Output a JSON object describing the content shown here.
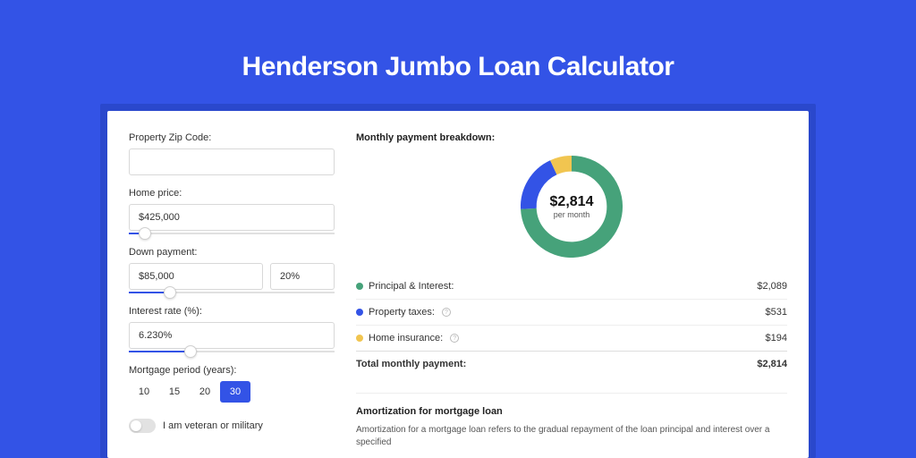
{
  "page": {
    "title": "Henderson Jumbo Loan Calculator",
    "background_color": "#3353e6",
    "panel_wrap_color": "#2a48cc",
    "panel_color": "#ffffff"
  },
  "form": {
    "zip": {
      "label": "Property Zip Code:",
      "value": ""
    },
    "home_price": {
      "label": "Home price:",
      "value": "$425,000",
      "slider_pct": 8
    },
    "down_payment": {
      "label": "Down payment:",
      "amount": "$85,000",
      "pct": "20%",
      "slider_pct": 20
    },
    "interest_rate": {
      "label": "Interest rate (%):",
      "value": "6.230%",
      "slider_pct": 30
    },
    "mortgage_period": {
      "label": "Mortgage period (years):",
      "options": [
        "10",
        "15",
        "20",
        "30"
      ],
      "selected": "30"
    },
    "veteran_toggle": {
      "label": "I am veteran or military",
      "on": false
    }
  },
  "breakdown": {
    "title": "Monthly payment breakdown:",
    "donut": {
      "amount": "$2,814",
      "sub": "per month",
      "slices": [
        {
          "key": "principal_interest",
          "value": 2089,
          "color": "#46a27a"
        },
        {
          "key": "property_taxes",
          "value": 531,
          "color": "#3353e6"
        },
        {
          "key": "home_insurance",
          "value": 194,
          "color": "#f1c550"
        }
      ],
      "thickness": 18
    },
    "legend": {
      "items": [
        {
          "label": "Principal & Interest:",
          "value": "$2,089",
          "color": "#46a27a",
          "info": false
        },
        {
          "label": "Property taxes:",
          "value": "$531",
          "color": "#3353e6",
          "info": true
        },
        {
          "label": "Home insurance:",
          "value": "$194",
          "color": "#f1c550",
          "info": true
        }
      ],
      "total_label": "Total monthly payment:",
      "total_value": "$2,814"
    }
  },
  "amortization": {
    "title": "Amortization for mortgage loan",
    "text": "Amortization for a mortgage loan refers to the gradual repayment of the loan principal and interest over a specified"
  }
}
